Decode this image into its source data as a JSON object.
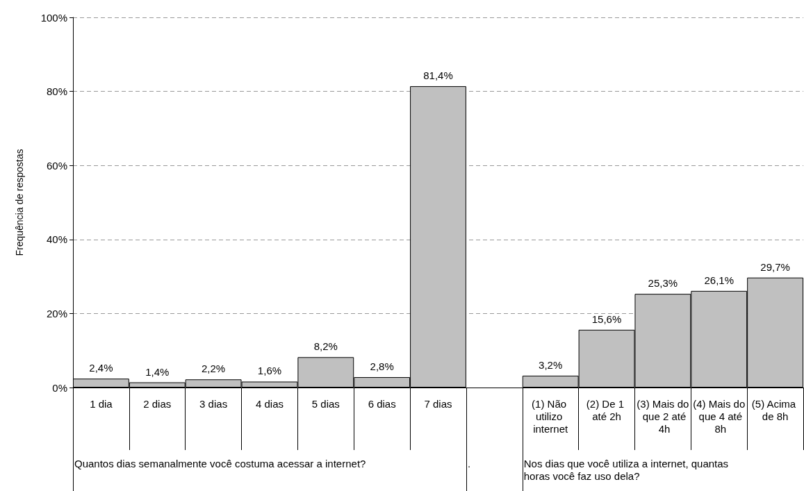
{
  "chart_data": {
    "type": "bar",
    "ylabel": "Frequência de respostas",
    "categories": [
      "1 dia",
      "2 dias",
      "3 dias",
      "4 dias",
      "5 dias",
      "6 dias",
      "7 dias",
      null,
      "(1) Não utilizo internet",
      "(2) De 1 até 2h",
      "(3) Mais do que 2 até 4h",
      "(4) Mais do que 4 até 8h",
      "(5) Acima de 8h"
    ],
    "values": [
      2.4,
      1.4,
      2.2,
      1.6,
      8.2,
      2.8,
      81.4,
      null,
      3.2,
      15.6,
      25.3,
      26.1,
      29.7
    ],
    "value_labels": [
      "2,4%",
      "1,4%",
      "2,2%",
      "1,6%",
      "8,2%",
      "2,8%",
      "81,4%",
      null,
      "3,2%",
      "15,6%",
      "25,3%",
      "26,1%",
      "29,7%"
    ],
    "color": "#c0c0c0",
    "ylim": [
      0,
      100
    ],
    "yticks": [
      {
        "value": 0,
        "label": "0%"
      },
      {
        "value": 20,
        "label": "20%"
      },
      {
        "value": 40,
        "label": "40%"
      },
      {
        "value": 60,
        "label": "60%"
      },
      {
        "value": 80,
        "label": "80%"
      },
      {
        "value": 100,
        "label": "100%"
      }
    ],
    "grid": "y",
    "annotations": [
      "Quantos dias semanalmente você costuma acessar a internet?",
      ".",
      "Nos dias que você utiliza a internet, quantas horas você faz uso dela?"
    ]
  }
}
